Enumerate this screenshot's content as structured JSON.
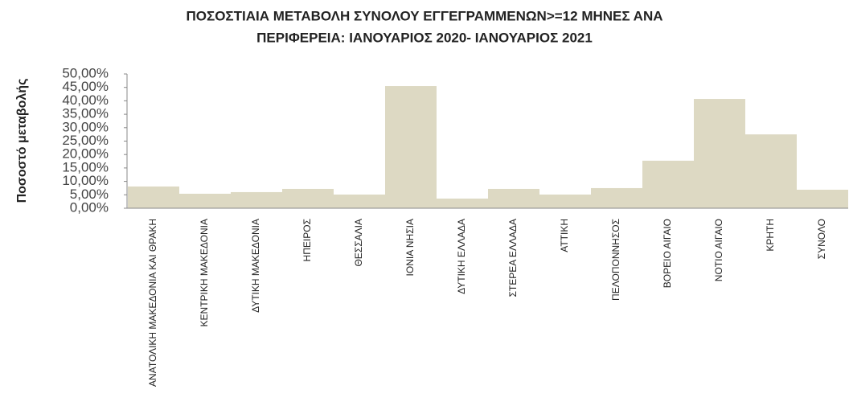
{
  "chart_data": {
    "type": "bar",
    "title_lines": [
      "ΠΟΣΟΣΤΙΑΙΑ ΜΕΤΑΒΟΛΗ  ΣΥΝΟΛΟΥ ΕΓΓΕΓΡΑΜΜΕΝΩΝ>=12 ΜΗΝΕΣ ΑΝΑ",
      "ΠΕΡΙΦΕΡΕΙΑ: ΙΑΝΟΥΑΡΙΟΣ 2020-  ΙΑΝΟΥΑΡΙΟΣ 2021"
    ],
    "y_label": "Ποσοστό μεταβολής",
    "categories": [
      "ΑΝΑΤΟΛΙΚΗ ΜΑΚΕΔΟΝΙΑ ΚΑΙ ΘΡΑΚΗ",
      "ΚΕΝΤΡΙΚΗ ΜΑΚΕΔΟΝΙΑ",
      "ΔΥΤΙΚΗ ΜΑΚΕΔΟΝΙΑ",
      "ΗΠΕΙΡΟΣ",
      "ΘΕΣΣΑΛΙΑ",
      "ΙΟΝΙΑ ΝΗΣΙΑ",
      "ΔΥΤΙΚΗ ΕΛΛΑΔΑ",
      "ΣΤΕΡΕΑ ΕΛΛΑΔΑ",
      "ΑΤΤΙΚΗ",
      "ΠΕΛΟΠΟΝΝΗΣΟΣ",
      "ΒΟΡΕΙΟ ΑΙΓΑΙΟ",
      "ΝΟΤΙΟ ΑΙΓΑΙΟ",
      "ΚΡΗΤΗ",
      "ΣΥΝΟΛΟ"
    ],
    "values": [
      8.1,
      5.4,
      6.0,
      7.2,
      5.1,
      45.5,
      3.6,
      7.2,
      5.1,
      7.5,
      17.7,
      40.7,
      27.5,
      6.9
    ],
    "color": "#ddd9c3",
    "ylim": [
      0,
      50
    ],
    "yticks": [
      {
        "value": 0,
        "label": "0,00%"
      },
      {
        "value": 5,
        "label": "5,00%"
      },
      {
        "value": 10,
        "label": "10,00%"
      },
      {
        "value": 15,
        "label": "15,00%"
      },
      {
        "value": 20,
        "label": "20,00%"
      },
      {
        "value": 25,
        "label": "25,00%"
      },
      {
        "value": 30,
        "label": "30,00%"
      },
      {
        "value": 35,
        "label": "35,00%"
      },
      {
        "value": 40,
        "label": "40,00%"
      },
      {
        "value": 45,
        "label": "45,00%"
      },
      {
        "value": 50,
        "label": "50,00%"
      }
    ],
    "grid": false
  }
}
